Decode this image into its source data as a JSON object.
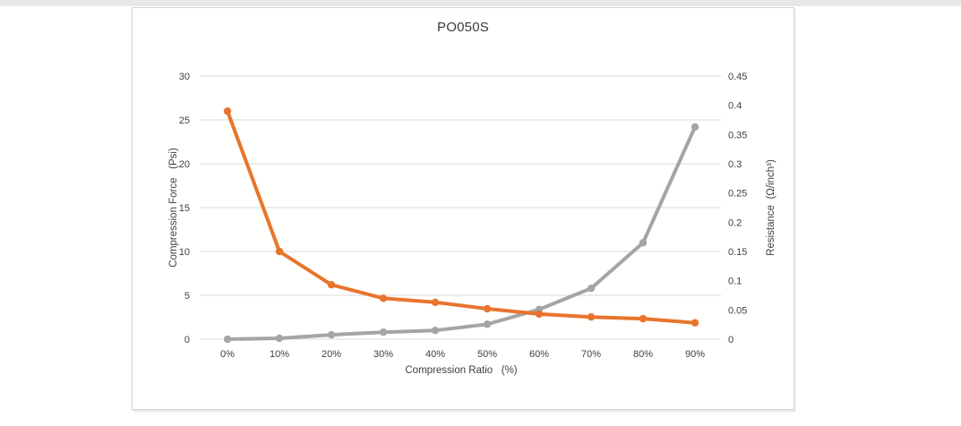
{
  "page": {
    "title": "PO050S"
  },
  "chart_data": {
    "type": "line",
    "title": "PO050S",
    "categories": [
      "0%",
      "10%",
      "20%",
      "30%",
      "40%",
      "50%",
      "60%",
      "70%",
      "80%",
      "90%"
    ],
    "series": [
      {
        "name": "Compression Force",
        "axis": "left",
        "color": "#A5A5A5",
        "values": [
          0,
          0.1,
          0.5,
          0.8,
          1.0,
          1.7,
          3.4,
          5.8,
          11.0,
          24.2
        ]
      },
      {
        "name": "Resistance",
        "axis": "right",
        "color": "#E8742C",
        "values": [
          0.39,
          0.15,
          0.093,
          0.07,
          0.063,
          0.052,
          0.043,
          0.038,
          0.035,
          0.028
        ]
      }
    ],
    "x_axis": {
      "label": "Compression Ratio   (%)"
    },
    "left_axis": {
      "label": "Compression Force   (Psi)",
      "min": 0,
      "max": 30,
      "ticks": [
        "0",
        "5",
        "10",
        "15",
        "20",
        "25",
        "30"
      ]
    },
    "right_axis": {
      "label": "Resistance  (Ω/inch³)",
      "min": 0,
      "max": 0.45,
      "ticks": [
        "0",
        "0.05",
        "0.1",
        "0.15",
        "0.2",
        "0.25",
        "0.3",
        "0.35",
        "0.4",
        "0.45"
      ]
    },
    "grid": true,
    "legend": "none",
    "colors": {
      "gridline": "#D9D9D9",
      "axis_text": "#404040",
      "frame_border": "#d4d4d2"
    }
  }
}
